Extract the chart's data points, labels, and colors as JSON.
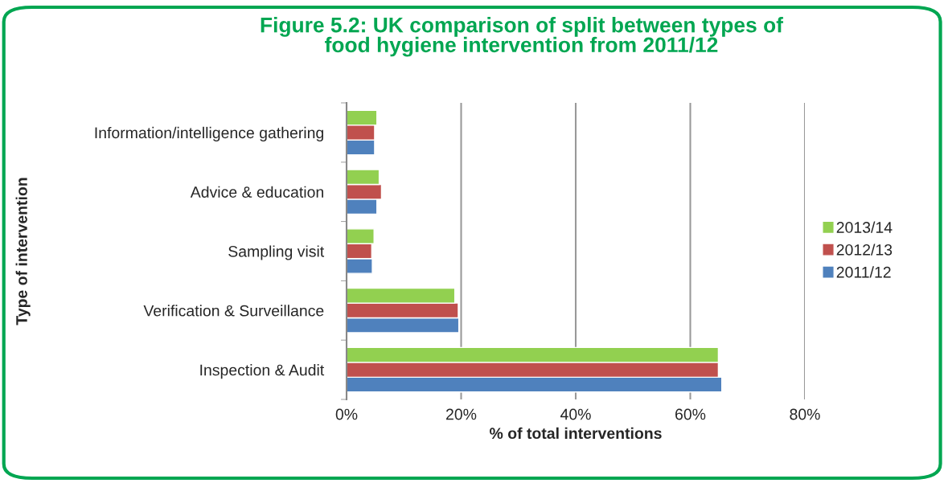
{
  "chart_data": {
    "type": "bar",
    "orientation": "horizontal",
    "title": "Figure 5.2: UK comparison of split between types of\nfood hygiene intervention from 2011/12",
    "xlabel": "% of total interventions",
    "ylabel": "Type of intervention",
    "categories": [
      "Information/intelligence gathering",
      "Advice & education",
      "Sampling visit",
      "Verification & Surveillance",
      "Inspection & Audit"
    ],
    "series": [
      {
        "name": "2011/12",
        "color": "#4f81bd",
        "values": [
          4.9,
          5.3,
          4.5,
          19.6,
          65.5
        ]
      },
      {
        "name": "2012/13",
        "color": "#c0504d",
        "values": [
          4.9,
          6.1,
          4.4,
          19.5,
          64.9
        ]
      },
      {
        "name": "2013/14",
        "color": "#92d050",
        "values": [
          5.3,
          5.7,
          4.8,
          18.9,
          64.9
        ]
      }
    ],
    "xlim": [
      0,
      80
    ],
    "xticks": [
      {
        "value": 0,
        "label": "0%"
      },
      {
        "value": 20,
        "label": "20%"
      },
      {
        "value": 40,
        "label": "40%"
      },
      {
        "value": 60,
        "label": "60%"
      },
      {
        "value": 80,
        "label": "80%"
      }
    ],
    "grid": "x",
    "legend": "right"
  }
}
